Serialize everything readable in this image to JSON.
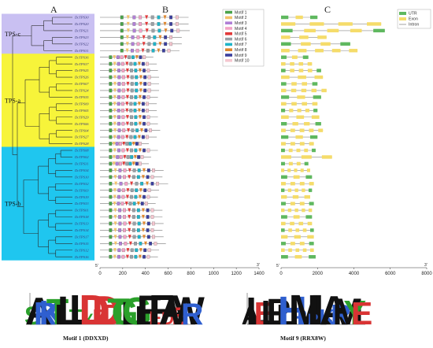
{
  "panels": {
    "a": "A",
    "b": "B",
    "c": "C"
  },
  "groups": [
    {
      "name": "TPS-c",
      "start": 0,
      "end": 5,
      "color": "#c9c0f2"
    },
    {
      "name": "TPS-a",
      "start": 6,
      "end": 19,
      "color": "#f7f43a"
    },
    {
      "name": "TPS-b",
      "start": 20,
      "end": 36,
      "color": "#1fc6ef"
    }
  ],
  "genes": [
    "DcTPS30",
    "DcTPS20",
    "DcTPS21",
    "DcTPS23",
    "DcTPS22",
    "DcTPS31",
    "DcTPS36",
    "DcTPS37",
    "DcTPS25",
    "DcTPS26",
    "DcTPS07",
    "DcTPS24",
    "DcTPS35",
    "DcTPS09",
    "DcTPS05",
    "DcTPS29",
    "DcTPS06",
    "DcTPS04",
    "DcTPS27",
    "DcTPS28",
    "DcTPS08",
    "DcTPS02",
    "DcTPS31",
    "DcTPS34",
    "DcTPS10",
    "DcTPS32",
    "DcTPS03",
    "DcTPS19",
    "DcTPS33",
    "DcTPS01",
    "DcTPS18",
    "DcTPS13",
    "DcTPS14",
    "DcTPS17",
    "DcTPS15",
    "DcTPS12",
    "DcTPS16"
  ],
  "protein_len": [
    780,
    780,
    790,
    720,
    720,
    700,
    470,
    500,
    510,
    520,
    520,
    520,
    510,
    500,
    500,
    510,
    510,
    530,
    500,
    430,
    510,
    450,
    430,
    560,
    550,
    600,
    520,
    510,
    490,
    550,
    550,
    560,
    550,
    560,
    580,
    520,
    510
  ],
  "gene_len": [
    2000,
    5500,
    5700,
    2500,
    3800,
    4200,
    1500,
    1700,
    2200,
    2300,
    2000,
    2500,
    2200,
    2000,
    2000,
    2100,
    2200,
    2300,
    2000,
    1800,
    1900,
    2800,
    1500,
    1600,
    1700,
    1800,
    1700,
    1600,
    1800,
    1700,
    1700,
    1700,
    1800,
    1800,
    1800,
    1800,
    1900
  ],
  "motifs_legend": [
    {
      "name": "Motif 1",
      "color": "#4aa34a"
    },
    {
      "name": "Motif 2",
      "color": "#f3c26b"
    },
    {
      "name": "Motif 3",
      "color": "#b07fd6"
    },
    {
      "name": "Motif 4",
      "color": "#f2a3c5"
    },
    {
      "name": "Motif 5",
      "color": "#e23a3a"
    },
    {
      "name": "Motif 6",
      "color": "#9aa0a6"
    },
    {
      "name": "Motif 7",
      "color": "#1fb4c8"
    },
    {
      "name": "Motif 8",
      "color": "#e0862c"
    },
    {
      "name": "Motif 9",
      "color": "#3b3f9e"
    },
    {
      "name": "Motif 10",
      "color": "#f5c6cf"
    }
  ],
  "structure_legend": [
    {
      "name": "UTR",
      "color": "#5fb85f"
    },
    {
      "name": "Exon",
      "color": "#f5dc6a"
    },
    {
      "name": "Intron",
      "color": "#888888"
    }
  ],
  "axis_b": {
    "ticks": [
      0,
      200,
      400,
      600,
      800,
      1000,
      1200,
      1400
    ],
    "end5": "5'",
    "end3": "3'"
  },
  "axis_c": {
    "ticks": [
      0,
      2000,
      4000,
      6000,
      8000
    ],
    "end5": "5'",
    "end3": "3'"
  },
  "logos": {
    "motif1": {
      "caption": "Motif 1 (DDXXD)"
    },
    "motif9": {
      "caption": "Motif 9 (RRX8W)"
    }
  }
}
